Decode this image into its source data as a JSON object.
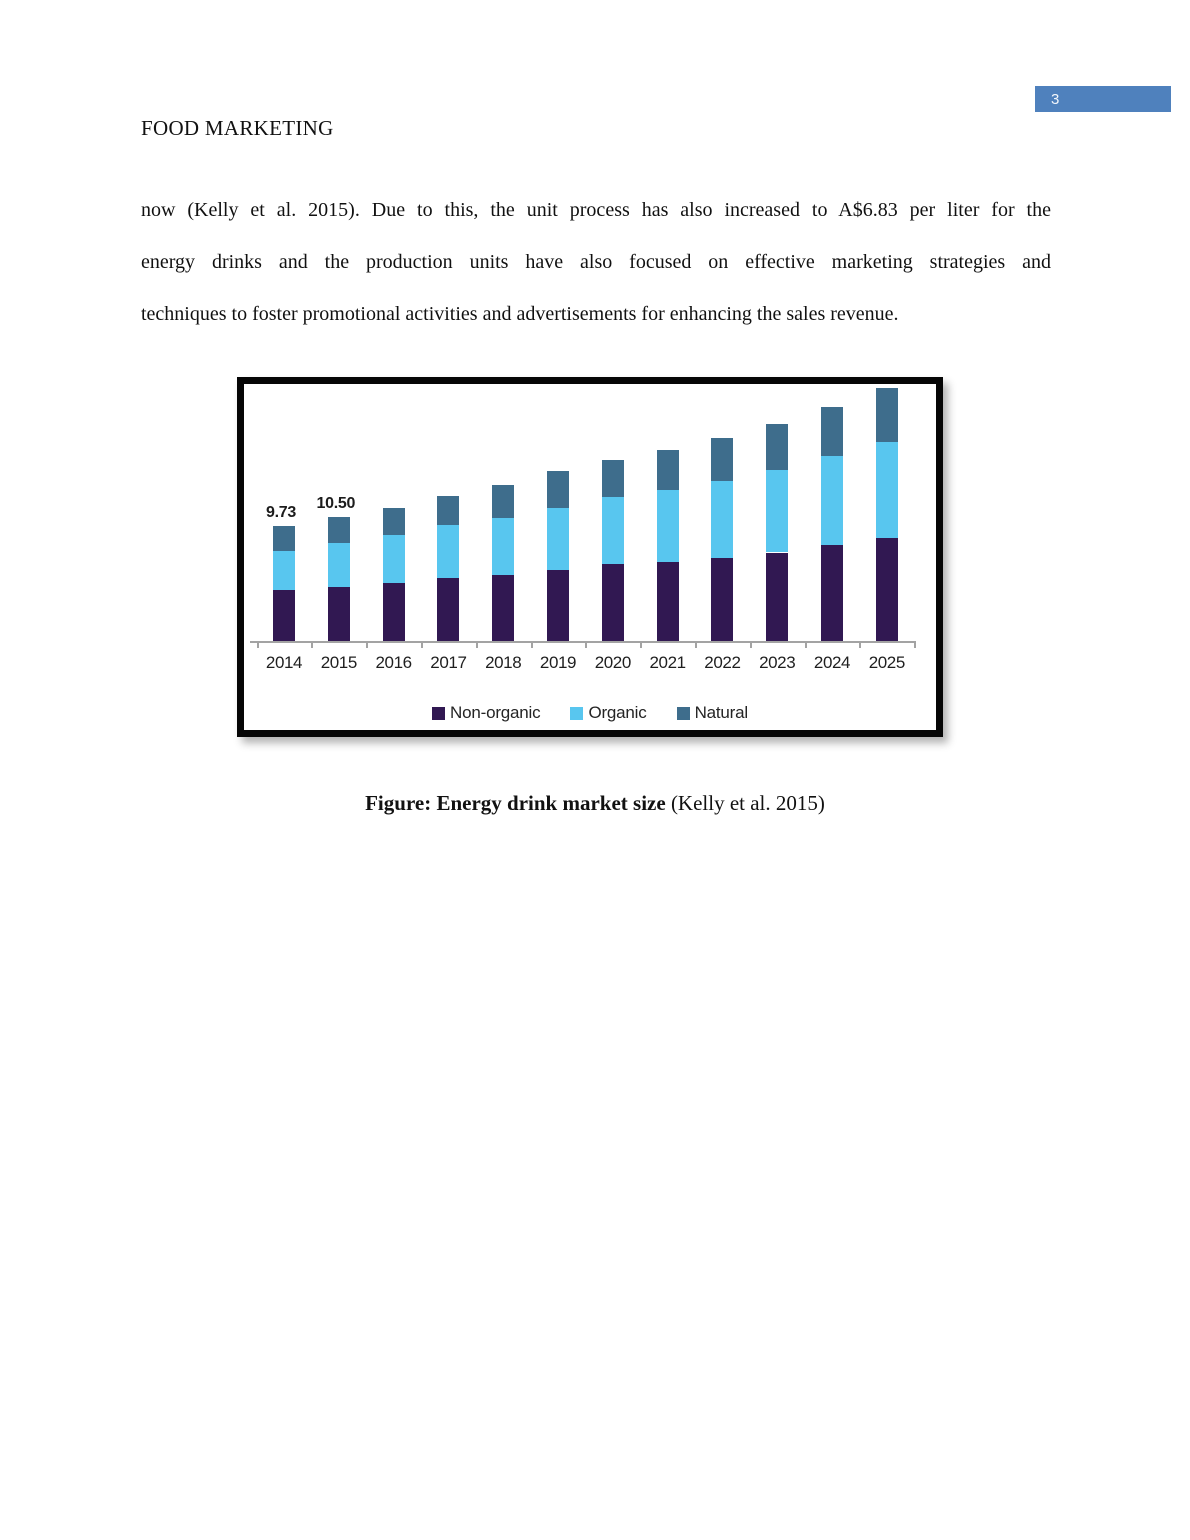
{
  "page": {
    "number": "3",
    "number_box_color": "#4f81bd",
    "running_head": "FOOD MARKETING"
  },
  "paragraph": {
    "lines": [
      "now (Kelly et al. 2015). Due to this, the unit process has also increased to A$6.83 per liter for the",
      "energy drinks and the production units have also focused on effective marketing strategies and",
      "techniques to foster promotional activities and advertisements for enhancing the sales revenue."
    ]
  },
  "figure": {
    "caption_bold": "Figure: Energy drink market size",
    "caption_regular": " (Kelly et al. 2015)"
  },
  "chart_data": {
    "type": "bar",
    "stacked": true,
    "title": "Energy drink market size",
    "xlabel": "",
    "ylabel": "",
    "grid": false,
    "legend_position": "bottom",
    "axis_color": "#a3a3a3",
    "categories": [
      "2014",
      "2015",
      "2016",
      "2017",
      "2018",
      "2019",
      "2020",
      "2021",
      "2022",
      "2023",
      "2024",
      "2025"
    ],
    "series": [
      {
        "name": "Non-organic",
        "color": "#311852",
        "values": [
          4.3,
          4.6,
          4.9,
          5.3,
          5.6,
          6.0,
          6.5,
          6.7,
          7.0,
          7.5,
          8.1,
          8.7
        ]
      },
      {
        "name": "Organic",
        "color": "#58c6ef",
        "values": [
          3.3,
          3.7,
          4.1,
          4.5,
          4.8,
          5.3,
          5.7,
          6.1,
          6.6,
          7.0,
          7.6,
          8.2
        ]
      },
      {
        "name": "Natural",
        "color": "#3e6d8c",
        "values": [
          2.13,
          2.2,
          2.3,
          2.5,
          2.8,
          3.1,
          3.1,
          3.4,
          3.6,
          3.9,
          4.1,
          4.5
        ]
      }
    ],
    "totals": [
      9.73,
      10.5,
      11.3,
      12.3,
      13.2,
      14.4,
      15.3,
      16.2,
      17.2,
      18.4,
      19.8,
      21.4
    ],
    "data_labels": [
      {
        "index": 0,
        "text": "9.73"
      },
      {
        "index": 1,
        "text": "10.50"
      }
    ]
  }
}
